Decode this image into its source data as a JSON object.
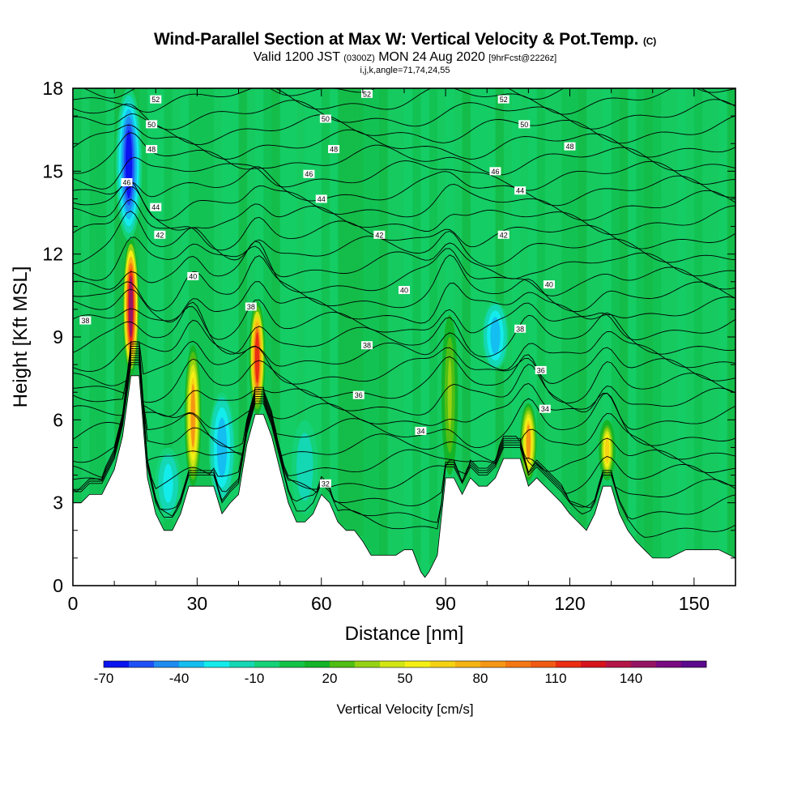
{
  "header": {
    "title": "Wind-Parallel Section at Max W: Vertical Velocity & Pot.Temp.",
    "copyright": "(C)",
    "subtitle_main": "Valid 1200 JST",
    "subtitle_utc": "(0300Z)",
    "subtitle_date": "MON 24 Aug 2020",
    "subtitle_fcst": "[9hrFcst@2226z]",
    "params": "i,j,k,angle=71,74,24,55"
  },
  "chart_data": {
    "type": "heatmap",
    "xlabel": "Distance [nm]",
    "ylabel": "Height [Kft MSL]",
    "xlim": [
      0,
      160
    ],
    "ylim": [
      0,
      18
    ],
    "x_ticks": [
      "0",
      "30",
      "60",
      "90",
      "120",
      "150"
    ],
    "x_tick_values": [
      0,
      30,
      60,
      90,
      120,
      150
    ],
    "y_ticks": [
      "0",
      "3",
      "6",
      "9",
      "12",
      "15",
      "18"
    ],
    "y_tick_values": [
      0,
      3,
      6,
      9,
      12,
      15,
      18
    ],
    "terrain_kft": {
      "x": [
        0,
        2,
        4,
        7,
        10,
        12,
        14,
        16,
        18,
        20,
        22,
        24,
        26,
        28,
        30,
        34,
        36,
        38,
        40,
        42,
        44,
        46,
        48,
        50,
        52,
        54,
        56,
        58,
        60,
        62,
        64,
        66,
        68,
        70,
        72,
        74,
        76,
        78,
        80,
        82,
        84,
        85,
        86,
        88,
        90,
        92,
        94,
        96,
        98,
        100,
        102,
        104,
        106,
        108,
        110,
        112,
        114,
        116,
        118,
        120,
        122,
        124,
        126,
        128,
        130,
        132,
        134,
        136,
        138,
        140,
        144,
        148,
        152,
        156,
        160
      ],
      "y": [
        3.0,
        3.0,
        3.3,
        3.3,
        4.2,
        5.4,
        7.6,
        7.6,
        3.9,
        2.6,
        2.0,
        2.0,
        2.6,
        3.6,
        3.6,
        3.6,
        2.6,
        3.0,
        3.3,
        5.1,
        6.2,
        6.2,
        5.4,
        4.2,
        3.0,
        2.3,
        2.3,
        2.6,
        3.3,
        3.0,
        2.3,
        2.0,
        2.0,
        1.6,
        1.1,
        1.1,
        1.1,
        1.1,
        1.3,
        1.3,
        0.5,
        0.3,
        0.5,
        1.1,
        3.9,
        3.9,
        3.3,
        3.9,
        3.6,
        3.6,
        3.9,
        4.6,
        4.6,
        4.6,
        3.6,
        3.9,
        3.6,
        3.3,
        3.0,
        2.6,
        2.3,
        2.0,
        2.6,
        3.6,
        3.6,
        2.6,
        2.0,
        1.6,
        1.3,
        1.0,
        1.0,
        1.3,
        1.3,
        1.3,
        1.0
      ]
    },
    "theta_contours": [
      {
        "label": "32",
        "label_x": 61,
        "label_y": 3.7
      },
      {
        "label": "34",
        "label_x": 84,
        "label_y": 5.6
      },
      {
        "label": "34",
        "label_x": 114,
        "label_y": 6.4
      },
      {
        "label": "36",
        "label_x": 69,
        "label_y": 6.9
      },
      {
        "label": "36",
        "label_x": 113,
        "label_y": 7.8
      },
      {
        "label": "38",
        "label_x": 3,
        "label_y": 9.6
      },
      {
        "label": "38",
        "label_x": 43,
        "label_y": 10.1
      },
      {
        "label": "38",
        "label_x": 71,
        "label_y": 8.7
      },
      {
        "label": "38",
        "label_x": 108,
        "label_y": 9.3
      },
      {
        "label": "40",
        "label_x": 29,
        "label_y": 11.2
      },
      {
        "label": "40",
        "label_x": 80,
        "label_y": 10.7
      },
      {
        "label": "40",
        "label_x": 115,
        "label_y": 10.9
      },
      {
        "label": "42",
        "label_x": 21,
        "label_y": 12.7
      },
      {
        "label": "42",
        "label_x": 74,
        "label_y": 12.7
      },
      {
        "label": "42",
        "label_x": 104,
        "label_y": 12.7
      },
      {
        "label": "44",
        "label_x": 20,
        "label_y": 13.7
      },
      {
        "label": "44",
        "label_x": 60,
        "label_y": 14.0
      },
      {
        "label": "44",
        "label_x": 108,
        "label_y": 14.3
      },
      {
        "label": "46",
        "label_x": 13,
        "label_y": 14.6
      },
      {
        "label": "46",
        "label_x": 57,
        "label_y": 14.9
      },
      {
        "label": "46",
        "label_x": 102,
        "label_y": 15.0
      },
      {
        "label": "48",
        "label_x": 19,
        "label_y": 15.8
      },
      {
        "label": "48",
        "label_x": 63,
        "label_y": 15.8
      },
      {
        "label": "48",
        "label_x": 120,
        "label_y": 15.9
      },
      {
        "label": "50",
        "label_x": 19,
        "label_y": 16.7
      },
      {
        "label": "50",
        "label_x": 61,
        "label_y": 16.9
      },
      {
        "label": "50",
        "label_x": 109,
        "label_y": 16.7
      },
      {
        "label": "52",
        "label_x": 20,
        "label_y": 17.6
      },
      {
        "label": "52",
        "label_x": 71,
        "label_y": 17.8
      },
      {
        "label": "52",
        "label_x": 104,
        "label_y": 17.6
      }
    ],
    "w_features": [
      {
        "x": 14,
        "y0": 7.6,
        "y1": 12.6,
        "w_max": 140,
        "kind": "updraft"
      },
      {
        "x": 29,
        "y0": 3.6,
        "y1": 8.7,
        "w_max": 80,
        "kind": "updraft"
      },
      {
        "x": 44.5,
        "y0": 6.2,
        "y1": 10.3,
        "w_max": 110,
        "kind": "updraft"
      },
      {
        "x": 91,
        "y0": 4.0,
        "y1": 9.8,
        "w_max": 30,
        "kind": "updraft"
      },
      {
        "x": 110,
        "y0": 3.8,
        "y1": 6.6,
        "w_max": 80,
        "kind": "updraft"
      },
      {
        "x": 129,
        "y0": 3.8,
        "y1": 6.0,
        "w_max": 60,
        "kind": "updraft"
      },
      {
        "x": 13.5,
        "y0": 12.5,
        "y1": 18,
        "w_max": -70,
        "kind": "downdraft"
      },
      {
        "x": 36,
        "y0": 3.0,
        "y1": 7.0,
        "w_max": -40,
        "kind": "downdraft"
      },
      {
        "x": 102,
        "y0": 7.8,
        "y1": 10.3,
        "w_max": -40,
        "kind": "downdraft"
      },
      {
        "x": 23,
        "y0": 2.4,
        "y1": 5.0,
        "w_max": -25,
        "kind": "downdraft"
      },
      {
        "x": 56,
        "y0": 2.6,
        "y1": 6.0,
        "w_max": -20,
        "kind": "downdraft"
      }
    ]
  },
  "colorbar": {
    "label": "Vertical Velocity [cm/s]",
    "levels_min": -70,
    "levels_step": 10,
    "tick_labels": [
      "-70",
      "-40",
      "-10",
      "20",
      "50",
      "80",
      "110",
      "140"
    ],
    "colors": [
      "#0a14f0",
      "#1e50f5",
      "#1e8cf0",
      "#14bef0",
      "#14ebeb",
      "#14d7b4",
      "#14d278",
      "#14c346",
      "#14b428",
      "#50be14",
      "#96d214",
      "#d2e614",
      "#f5f014",
      "#f5d214",
      "#f5b414",
      "#f59614",
      "#f57814",
      "#f05a14",
      "#eb2d14",
      "#d7141e",
      "#b41446",
      "#961464",
      "#780a82",
      "#5a0a8c"
    ]
  }
}
